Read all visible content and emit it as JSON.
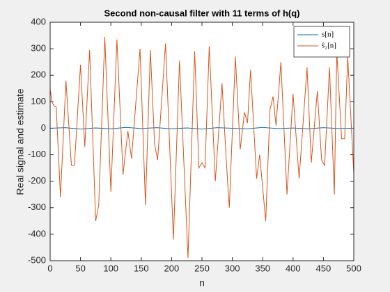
{
  "chart_data": {
    "type": "line",
    "title": "Second non-causal filter with 11 terms of h(q)",
    "x_label": "n",
    "y_label": "Real signal and estimate",
    "xlim": [
      0,
      500
    ],
    "xticks": [
      0,
      50,
      100,
      150,
      200,
      250,
      300,
      350,
      400,
      450,
      500
    ],
    "ylim": [
      -500,
      400
    ],
    "yticks": [
      -500,
      -400,
      -300,
      -200,
      -100,
      0,
      100,
      200,
      300,
      400
    ],
    "legend": "top-right",
    "series": [
      {
        "name": "s[n]",
        "color": "#0072bd",
        "x": [
          0,
          25,
          50,
          75,
          100,
          125,
          150,
          175,
          200,
          225,
          250,
          275,
          300,
          325,
          350,
          375,
          400,
          425,
          450,
          475,
          500
        ],
        "values": [
          0,
          2,
          -3,
          1,
          -2,
          3,
          -1,
          2,
          -2,
          1,
          -3,
          2,
          0,
          -2,
          3,
          -1,
          1,
          -2,
          2,
          -1,
          0
        ]
      },
      {
        "name": "ŝ₂[n]",
        "color": "#d95319",
        "x": [
          0,
          3,
          6,
          10,
          17,
          26,
          35,
          40,
          50,
          57,
          65,
          75,
          80,
          90,
          100,
          110,
          120,
          128,
          134,
          148,
          157,
          165,
          172,
          177,
          190,
          203,
          213,
          227,
          238,
          245,
          250,
          255,
          262,
          272,
          283,
          290,
          295,
          305,
          313,
          320,
          325,
          330,
          340,
          345,
          355,
          362,
          367,
          372,
          380,
          390,
          400,
          410,
          423,
          430,
          440,
          447,
          452,
          460,
          468,
          472,
          480,
          485,
          490,
          500
        ],
        "values": [
          147,
          100,
          85,
          80,
          -260,
          180,
          -140,
          -140,
          240,
          -70,
          295,
          -350,
          -290,
          345,
          -240,
          335,
          -175,
          -10,
          -115,
          300,
          -290,
          295,
          -60,
          -120,
          320,
          -420,
          255,
          -490,
          290,
          -150,
          -130,
          -150,
          310,
          -200,
          170,
          -120,
          -300,
          270,
          -80,
          60,
          20,
          220,
          -190,
          -100,
          -350,
          70,
          120,
          10,
          250,
          -250,
          130,
          -190,
          230,
          -130,
          140,
          -120,
          -140,
          230,
          -250,
          290,
          -40,
          -40,
          270,
          -170
        ]
      }
    ]
  }
}
